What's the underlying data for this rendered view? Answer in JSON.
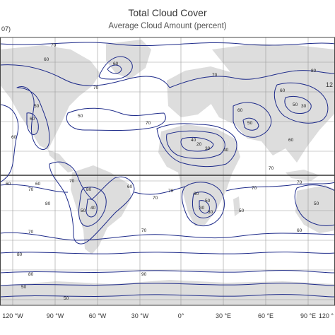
{
  "header": {
    "title": "Total Cloud Cover",
    "subtitle": "Average Cloud Amount (percent)",
    "corner_left": "07)",
    "corner_right": "12"
  },
  "axis": {
    "lon_labels": [
      "120 °W",
      "90 °W",
      "60 °W",
      "30 °W",
      "0°",
      "30 °E",
      "60 °E",
      "90 °E",
      "120 °"
    ]
  },
  "contour_labels": [
    "70",
    "60",
    "70",
    "70",
    "80",
    "60",
    "50",
    "60",
    "50",
    "40",
    "20",
    "30",
    "40",
    "50",
    "60",
    "70",
    "70",
    "80",
    "60",
    "50",
    "40",
    "30",
    "70",
    "80",
    "70",
    "70",
    "60",
    "50",
    "30",
    "70",
    "50",
    "70",
    "70",
    "50",
    "30",
    "60",
    "60",
    "60",
    "70",
    "60",
    "70",
    "80",
    "90",
    "80",
    "50",
    "50",
    "60",
    "60",
    "50"
  ],
  "colors": {
    "land": "#dddddd",
    "contour": "#1e2b8a",
    "grid": "#9a9a9a",
    "frame": "#444444"
  }
}
